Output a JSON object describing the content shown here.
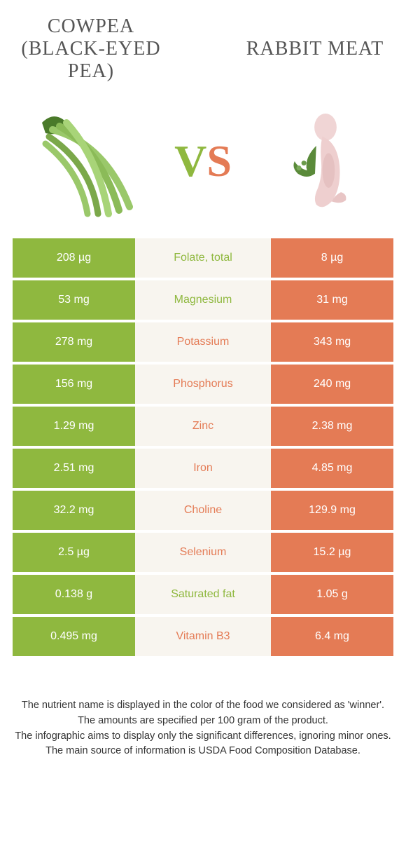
{
  "colors": {
    "green": "#8fb83f",
    "orange": "#e47b55",
    "mid_bg": "#f8f5ef"
  },
  "header": {
    "left_title": "Cowpea (Black-Eyed Pea)",
    "right_title": "Rabbit Meat",
    "vs_v": "V",
    "vs_s": "S"
  },
  "rows": [
    {
      "left": "208 µg",
      "label": "Folate, total",
      "right": "8 µg",
      "winner": "left"
    },
    {
      "left": "53 mg",
      "label": "Magnesium",
      "right": "31 mg",
      "winner": "left"
    },
    {
      "left": "278 mg",
      "label": "Potassium",
      "right": "343 mg",
      "winner": "right"
    },
    {
      "left": "156 mg",
      "label": "Phosphorus",
      "right": "240 mg",
      "winner": "right"
    },
    {
      "left": "1.29 mg",
      "label": "Zinc",
      "right": "2.38 mg",
      "winner": "right"
    },
    {
      "left": "2.51 mg",
      "label": "Iron",
      "right": "4.85 mg",
      "winner": "right"
    },
    {
      "left": "32.2 mg",
      "label": "Choline",
      "right": "129.9 mg",
      "winner": "right"
    },
    {
      "left": "2.5 µg",
      "label": "Selenium",
      "right": "15.2 µg",
      "winner": "right"
    },
    {
      "left": "0.138 g",
      "label": "Saturated fat",
      "right": "1.05 g",
      "winner": "left"
    },
    {
      "left": "0.495 mg",
      "label": "Vitamin B3",
      "right": "6.4 mg",
      "winner": "right"
    }
  ],
  "footer": {
    "line1": "The nutrient name is displayed in the color of the food we considered as 'winner'.",
    "line2": "The amounts are specified per 100 gram of the product.",
    "line3": "The infographic aims to display only the significant differences, ignoring minor ones.",
    "line4": "The main source of information is USDA Food Composition Database."
  }
}
